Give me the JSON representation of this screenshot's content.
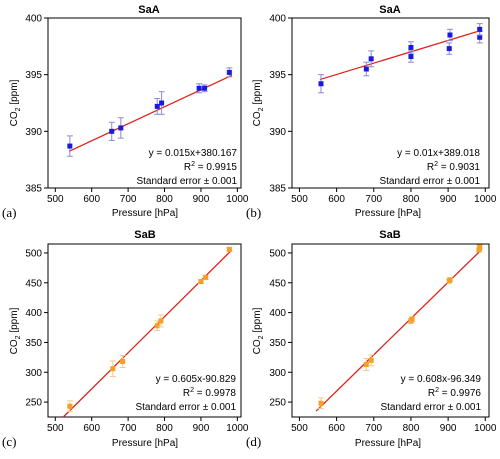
{
  "chart_data": [
    {
      "panel_label": "(a)",
      "type": "scatter",
      "title": "SaA",
      "xlabel": "Pressure [hPa]",
      "ylabel_main": "CO",
      "ylabel_sub": "2",
      "ylabel_tail": " [ppm]",
      "xlim": [
        480,
        1010
      ],
      "ylim": [
        385,
        400
      ],
      "xticks": [
        500,
        600,
        700,
        800,
        900,
        1000
      ],
      "yticks": [
        385,
        390,
        395,
        400
      ],
      "marker_color": "#1a1adf",
      "errorbar_color": "#8a8ad8",
      "line_color": "#e0201a",
      "points": [
        {
          "x": 540,
          "y": 388.7,
          "err": 0.9
        },
        {
          "x": 655,
          "y": 390.0,
          "err": 0.8
        },
        {
          "x": 680,
          "y": 390.3,
          "err": 0.9
        },
        {
          "x": 780,
          "y": 392.2,
          "err": 0.7
        },
        {
          "x": 792,
          "y": 392.5,
          "err": 1.0
        },
        {
          "x": 895,
          "y": 393.8,
          "err": 0.4
        },
        {
          "x": 910,
          "y": 393.8,
          "err": 0.3
        },
        {
          "x": 978,
          "y": 395.2,
          "err": 0.4
        }
      ],
      "fit": {
        "slope": 0.015,
        "intercept": 380.167,
        "x_range": [
          538,
          985
        ]
      },
      "annotations": {
        "equation": "y = 0.015x+380.167",
        "r2_prefix": "R",
        "r2_sup": "2",
        "r2_value": " = 0.9915",
        "stderr": "Standard error ±  0.001"
      }
    },
    {
      "panel_label": "(b)",
      "type": "scatter",
      "title": "SaA",
      "xlabel": "Pressure [hPa]",
      "ylabel_main": "CO",
      "ylabel_sub": "2",
      "ylabel_tail": " [ppm]",
      "xlim": [
        480,
        1010
      ],
      "ylim": [
        385,
        400
      ],
      "xticks": [
        500,
        600,
        700,
        800,
        900,
        1000
      ],
      "yticks": [
        385,
        390,
        395,
        400
      ],
      "marker_color": "#1a1adf",
      "errorbar_color": "#8a8ad8",
      "line_color": "#e0201a",
      "points": [
        {
          "x": 558,
          "y": 394.2,
          "err": 0.8
        },
        {
          "x": 680,
          "y": 395.5,
          "err": 0.6
        },
        {
          "x": 693,
          "y": 396.4,
          "err": 0.7
        },
        {
          "x": 800,
          "y": 396.6,
          "err": 0.5
        },
        {
          "x": 800,
          "y": 397.4,
          "err": 0.5
        },
        {
          "x": 903,
          "y": 397.3,
          "err": 0.5
        },
        {
          "x": 905,
          "y": 398.5,
          "err": 0.5
        },
        {
          "x": 985,
          "y": 398.3,
          "err": 0.5
        },
        {
          "x": 985,
          "y": 399.0,
          "err": 0.5
        }
      ],
      "fit": {
        "slope": 0.01,
        "intercept": 389.018,
        "x_range": [
          555,
          990
        ]
      },
      "annotations": {
        "equation": "y = 0.01x+389.018",
        "r2_prefix": "R",
        "r2_sup": "2",
        "r2_value": " = 0.9031",
        "stderr": "Standard error ±  0.001"
      }
    },
    {
      "panel_label": "(c)",
      "type": "scatter",
      "title": "SaB",
      "xlabel": "Pressure [hPa]",
      "ylabel_main": "CO",
      "ylabel_sub": "2",
      "ylabel_tail": " [ppm]",
      "xlim": [
        480,
        1010
      ],
      "ylim": [
        225,
        515
      ],
      "xticks": [
        500,
        600,
        700,
        800,
        900,
        1000
      ],
      "yticks": [
        250,
        300,
        350,
        400,
        450,
        500
      ],
      "marker_color": "#f5a020",
      "errorbar_color": "#f5c890",
      "line_color": "#e0201a",
      "points": [
        {
          "x": 540,
          "y": 243,
          "err": 9
        },
        {
          "x": 658,
          "y": 306,
          "err": 13
        },
        {
          "x": 685,
          "y": 318,
          "err": 10
        },
        {
          "x": 780,
          "y": 378,
          "err": 8
        },
        {
          "x": 790,
          "y": 386,
          "err": 10
        },
        {
          "x": 900,
          "y": 452,
          "err": 3
        },
        {
          "x": 913,
          "y": 459,
          "err": 3
        },
        {
          "x": 978,
          "y": 506,
          "err": 3
        }
      ],
      "fit": {
        "slope": 0.605,
        "intercept": -90.829,
        "x_range": [
          522,
          985
        ]
      },
      "annotations": {
        "equation": "y = 0.605x-90.829",
        "r2_prefix": "R",
        "r2_sup": "2",
        "r2_value": " = 0.9978",
        "stderr": "Standard error ±  0.001"
      }
    },
    {
      "panel_label": "(d)",
      "type": "scatter",
      "title": "SaB",
      "xlabel": "Pressure [hPa]",
      "ylabel_main": "CO",
      "ylabel_sub": "2",
      "ylabel_tail": " [ppm]",
      "xlim": [
        480,
        1010
      ],
      "ylim": [
        225,
        515
      ],
      "xticks": [
        500,
        600,
        700,
        800,
        900,
        1000
      ],
      "yticks": [
        250,
        300,
        350,
        400,
        450,
        500
      ],
      "marker_color": "#f5a020",
      "errorbar_color": "#f5c890",
      "line_color": "#e0201a",
      "points": [
        {
          "x": 558,
          "y": 248,
          "err": 9
        },
        {
          "x": 680,
          "y": 313,
          "err": 10
        },
        {
          "x": 693,
          "y": 320,
          "err": 9
        },
        {
          "x": 800,
          "y": 386,
          "err": 4
        },
        {
          "x": 803,
          "y": 389,
          "err": 4
        },
        {
          "x": 903,
          "y": 453,
          "err": 3
        },
        {
          "x": 905,
          "y": 455,
          "err": 3
        },
        {
          "x": 983,
          "y": 505,
          "err": 3
        },
        {
          "x": 985,
          "y": 510,
          "err": 3
        }
      ],
      "fit": {
        "slope": 0.608,
        "intercept": -96.349,
        "x_range": [
          545,
          990
        ]
      },
      "annotations": {
        "equation": "y = 0.608x-96.349",
        "r2_prefix": "R",
        "r2_sup": "2",
        "r2_value": " = 0.9976",
        "stderr": "Standard error ±  0.001"
      }
    }
  ]
}
